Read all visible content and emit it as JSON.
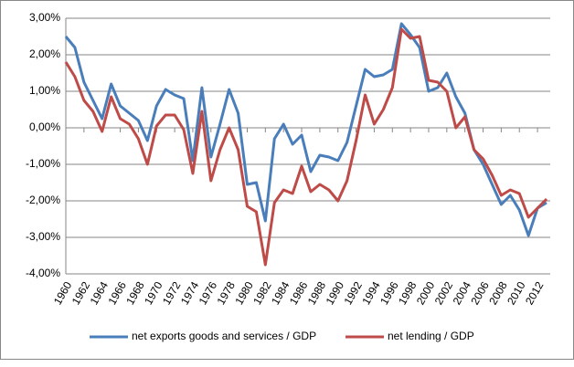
{
  "chart_data": {
    "type": "line",
    "x": [
      1960,
      1961,
      1962,
      1963,
      1964,
      1965,
      1966,
      1967,
      1968,
      1969,
      1970,
      1971,
      1972,
      1973,
      1974,
      1975,
      1976,
      1977,
      1978,
      1979,
      1980,
      1981,
      1982,
      1983,
      1984,
      1985,
      1986,
      1987,
      1988,
      1989,
      1990,
      1991,
      1992,
      1993,
      1994,
      1995,
      1996,
      1997,
      1998,
      1999,
      2000,
      2001,
      2002,
      2003,
      2004,
      2005,
      2006,
      2007,
      2008,
      2009,
      2010,
      2011,
      2012,
      2013
    ],
    "series": [
      {
        "name": "net exports goods and services / GDP",
        "color": "#4a7ebb",
        "values": [
          2.5,
          2.2,
          1.25,
          0.75,
          0.25,
          1.2,
          0.6,
          0.4,
          0.2,
          -0.35,
          0.6,
          1.05,
          0.9,
          0.8,
          -0.9,
          1.1,
          -0.8,
          0.1,
          1.05,
          0.4,
          -1.55,
          -1.5,
          -2.55,
          -0.3,
          0.1,
          -0.45,
          -0.2,
          -1.2,
          -0.75,
          -0.8,
          -0.9,
          -0.4,
          0.6,
          1.6,
          1.4,
          1.45,
          1.6,
          2.85,
          2.55,
          2.2,
          1.0,
          1.1,
          1.5,
          0.85,
          0.4,
          -0.6,
          -1.0,
          -1.55,
          -2.1,
          -1.85,
          -2.25,
          -2.95,
          -2.2,
          -2.05
        ]
      },
      {
        "name": "net lending / GDP",
        "color": "#be4b48",
        "values": [
          1.8,
          1.4,
          0.75,
          0.45,
          -0.1,
          0.85,
          0.25,
          0.1,
          -0.3,
          -1.0,
          0.05,
          0.35,
          0.35,
          -0.05,
          -1.25,
          0.45,
          -1.45,
          -0.6,
          0.0,
          -0.6,
          -2.15,
          -2.3,
          -3.75,
          -2.05,
          -1.7,
          -1.8,
          -1.05,
          -1.75,
          -1.55,
          -1.7,
          -2.0,
          -1.45,
          -0.35,
          0.9,
          0.1,
          0.5,
          1.1,
          2.7,
          2.45,
          2.5,
          1.3,
          1.25,
          1.0,
          0.0,
          0.3,
          -0.6,
          -0.85,
          -1.3,
          -1.85,
          -1.7,
          -1.8,
          -2.45,
          -2.2,
          -1.95
        ]
      }
    ],
    "xlim": [
      1960,
      2013
    ],
    "xticks": [
      1960,
      1962,
      1964,
      1966,
      1968,
      1970,
      1972,
      1974,
      1976,
      1978,
      1980,
      1982,
      1984,
      1986,
      1988,
      1990,
      1992,
      1994,
      1996,
      1998,
      2000,
      2002,
      2004,
      2006,
      2008,
      2010,
      2012
    ],
    "ylim": [
      -4,
      3
    ],
    "yticks": [
      {
        "value": -4,
        "label": "-4,00%"
      },
      {
        "value": -3,
        "label": "-3,00%"
      },
      {
        "value": -2,
        "label": "-2,00%"
      },
      {
        "value": -1,
        "label": "-1,00%"
      },
      {
        "value": 0,
        "label": "0,00%"
      },
      {
        "value": 1,
        "label": "1,00%"
      },
      {
        "value": 2,
        "label": "2,00%"
      },
      {
        "value": 3,
        "label": "3,00%"
      }
    ],
    "grid": true,
    "legend": "bottom"
  }
}
